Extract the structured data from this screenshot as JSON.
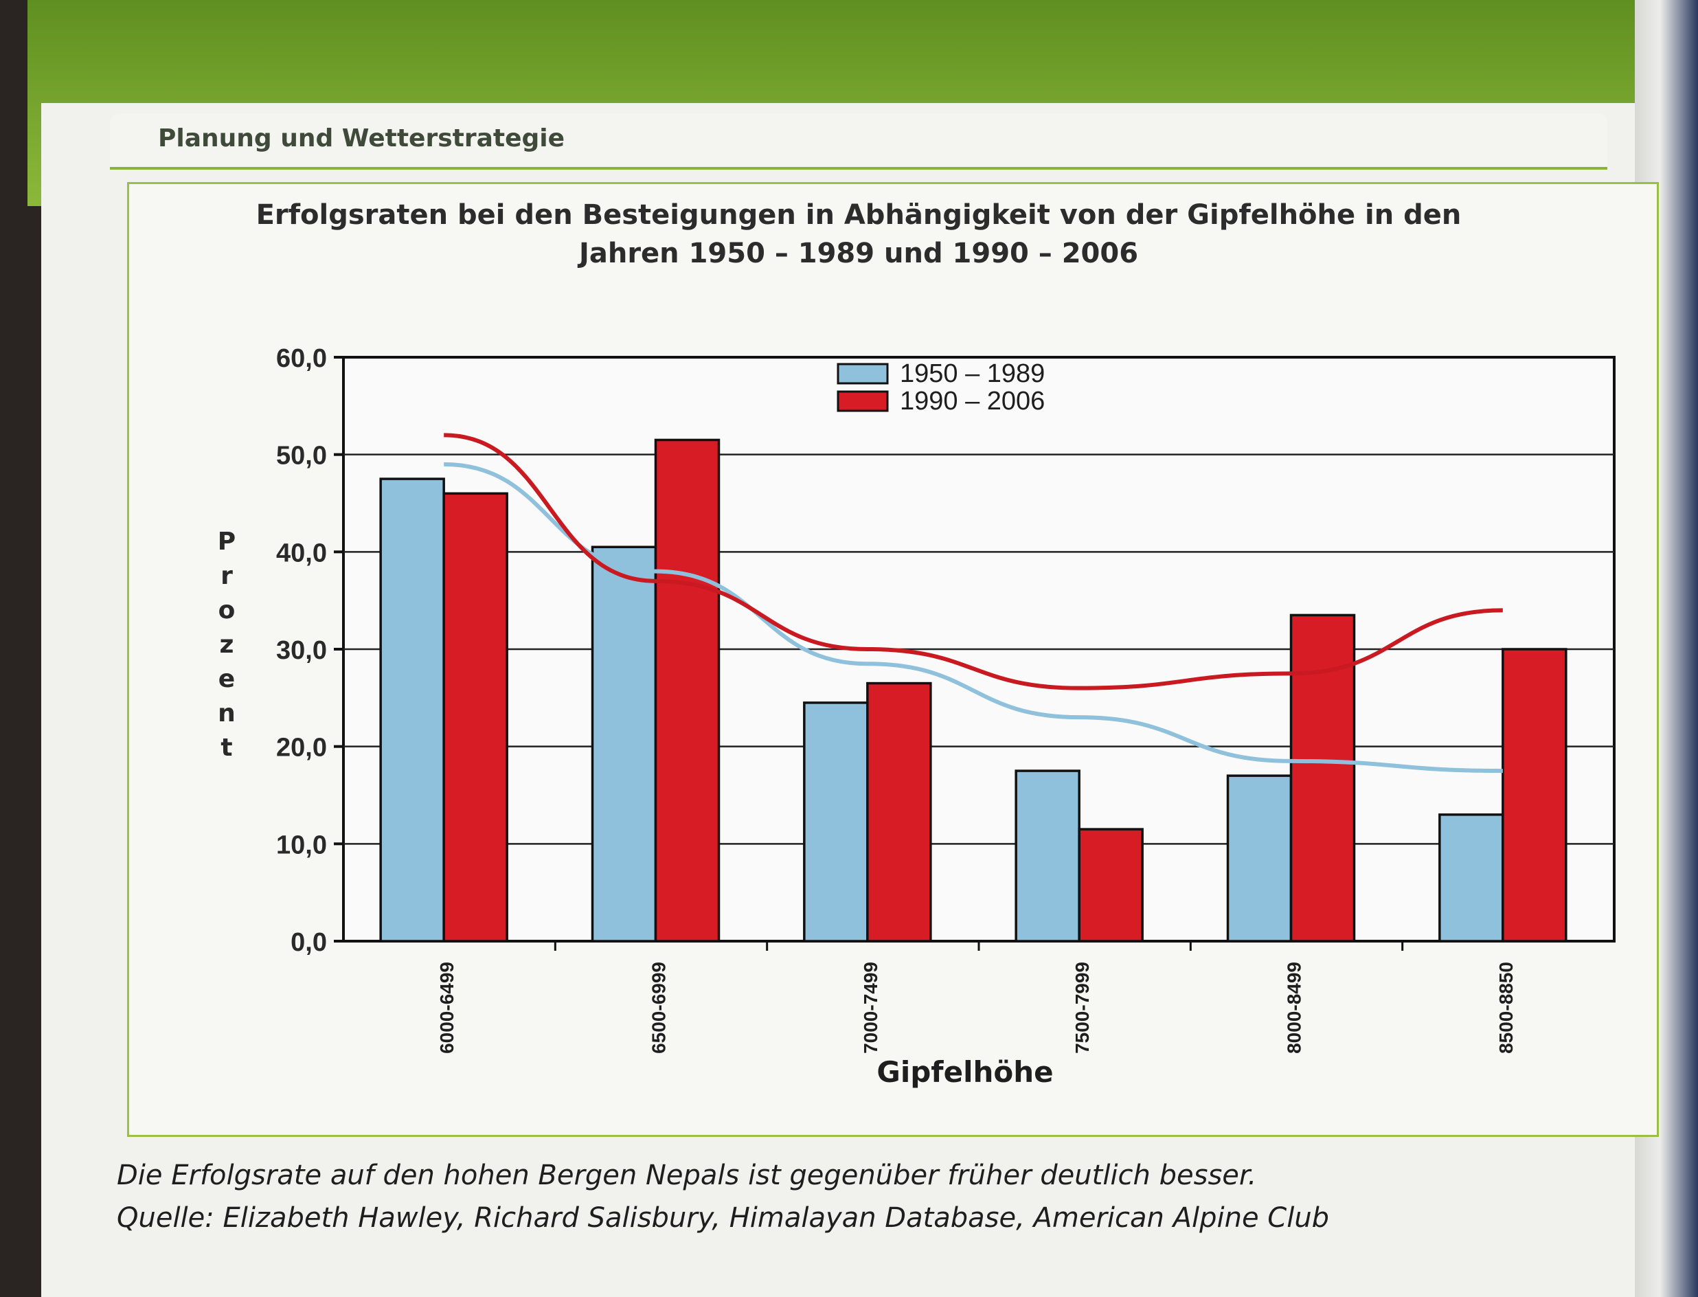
{
  "header": {
    "section": "Planung und Wetterstrategie"
  },
  "chart_data": {
    "type": "bar",
    "title": "Erfolgsraten bei den Besteigungen in Abhängigkeit von der Gipfelhöhe in den Jahren 1950 – 1989 und 1990 – 2006",
    "xlabel": "Gipfelhöhe",
    "ylabel": "Prozent",
    "categories": [
      "6000-6499",
      "6500-6999",
      "7000-7499",
      "7500-7999",
      "8000-8499",
      "8500-8850"
    ],
    "ylim": [
      0,
      60
    ],
    "yticks": [
      "0,0",
      "10,0",
      "20,0",
      "30,0",
      "40,0",
      "50,0",
      "60,0"
    ],
    "grid": true,
    "legend_position": "top-center",
    "series": [
      {
        "name": "1950 – 1989",
        "color": "#8fc1dc",
        "values": [
          47.5,
          40.5,
          24.5,
          17.5,
          17.0,
          13.0
        ]
      },
      {
        "name": "1990 – 2006",
        "color": "#d81c25",
        "values": [
          46.0,
          51.5,
          26.5,
          11.5,
          33.5,
          30.0
        ]
      }
    ],
    "trendlines": [
      {
        "series": "1950 – 1989",
        "color": "#8fc1dc",
        "values": [
          49.0,
          38.0,
          28.5,
          23.0,
          18.5,
          17.5
        ]
      },
      {
        "series": "1990 – 2006",
        "color": "#c81a20",
        "values": [
          52.0,
          37.0,
          30.0,
          26.0,
          27.5,
          34.0
        ]
      }
    ]
  },
  "caption": {
    "line1": "Die Erfolgsrate auf den hohen Bergen Nepals ist gegenüber früher deutlich besser.",
    "line2": "Quelle: Elizabeth Hawley, Richard Salisbury, Himalayan Database, American Alpine Club"
  }
}
